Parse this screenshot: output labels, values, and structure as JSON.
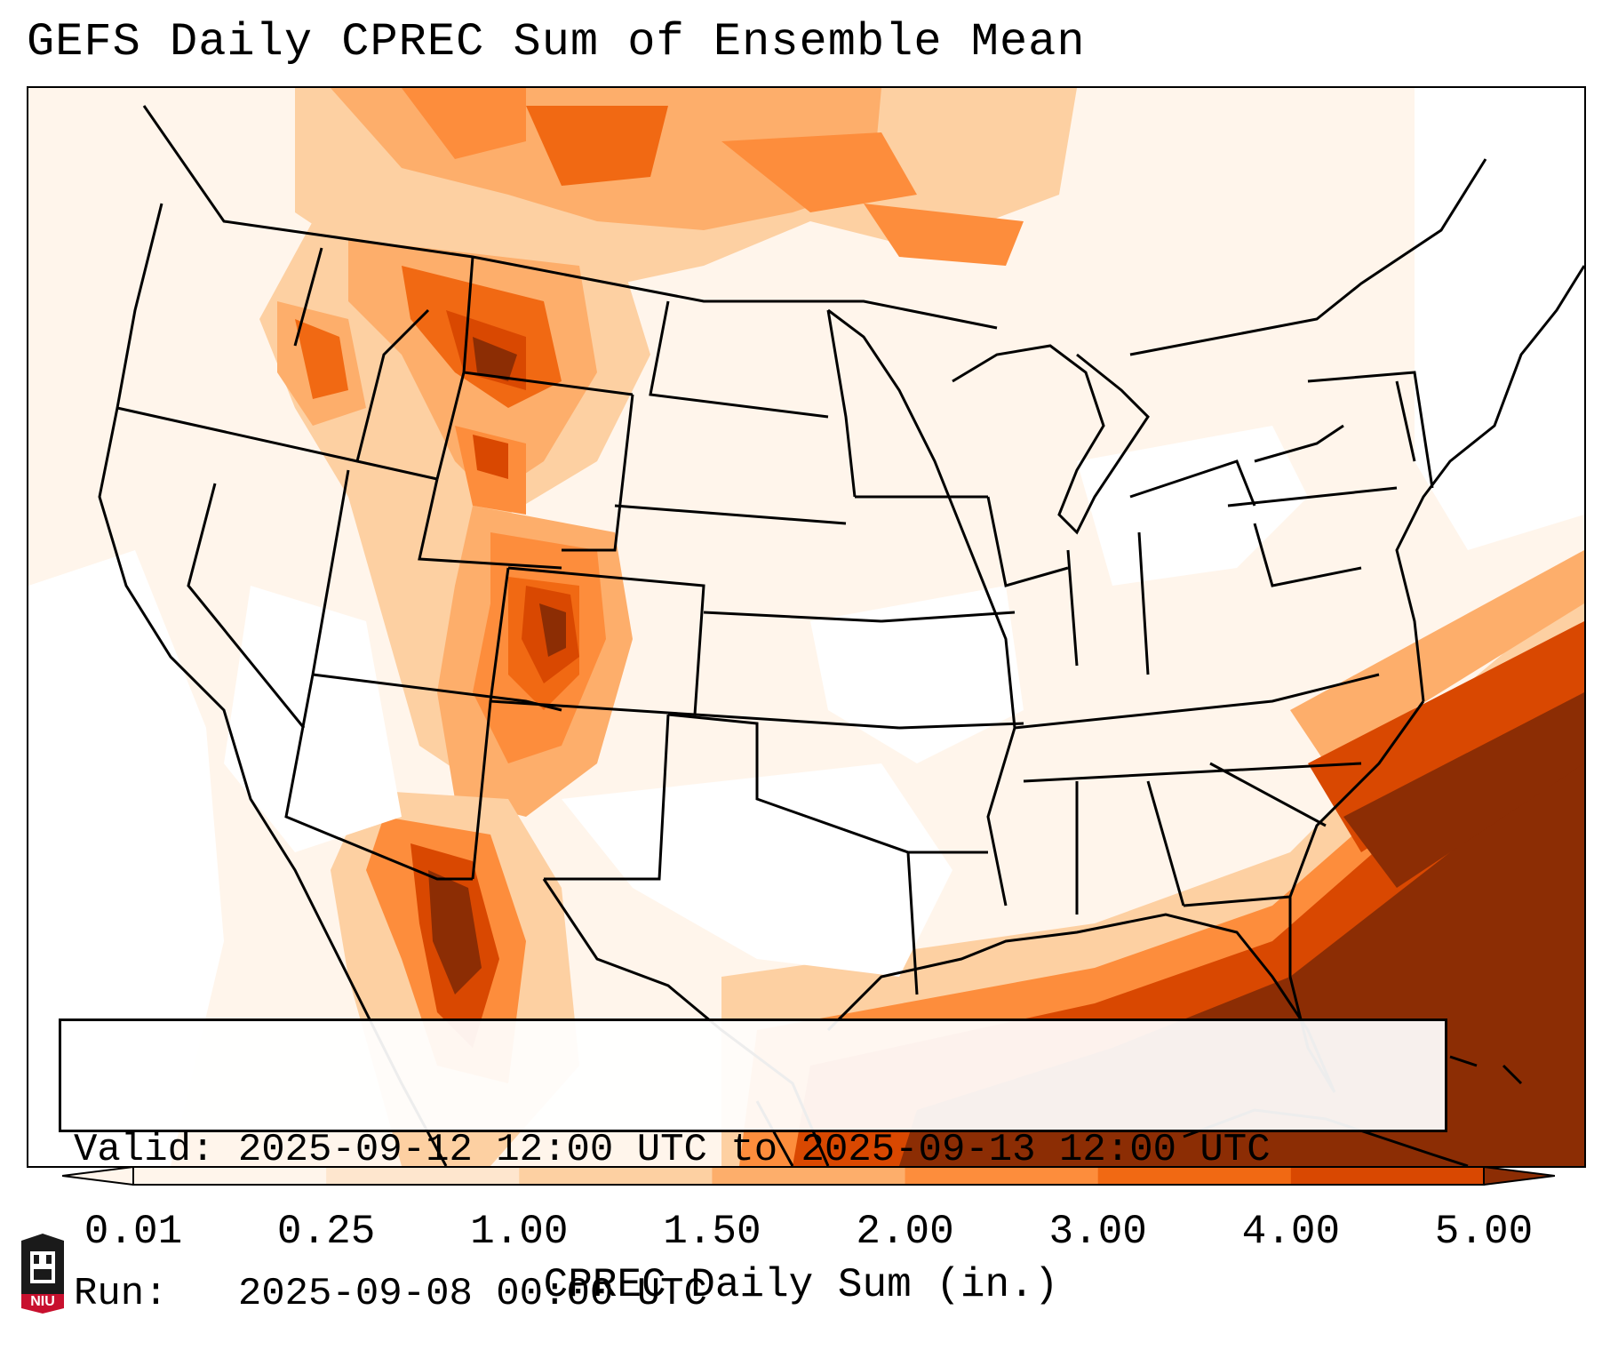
{
  "title": "GEFS Daily CPREC Sum of Ensemble Mean",
  "info": {
    "valid": "Valid: 2025-09-12 12:00 UTC to 2025-09-13 12:00 UTC",
    "run": "Run:   2025-09-08 00:00 UTC"
  },
  "colorbar": {
    "label": "CPREC Daily Sum (in.)",
    "ticks": [
      "0.01",
      "0.25",
      "1.00",
      "1.50",
      "2.00",
      "3.00",
      "4.00",
      "5.00"
    ],
    "colors": [
      "#fff5eb",
      "#fee6ce",
      "#fdd0a2",
      "#fdae6b",
      "#fd8d3c",
      "#f16913",
      "#d94801",
      "#8c2d04"
    ],
    "extend": "both"
  },
  "logo": {
    "text": "NIU",
    "colors": {
      "red": "#c8102e",
      "dark": "#1a1a1a"
    }
  },
  "icons": [
    "niu-logo-icon"
  ]
}
